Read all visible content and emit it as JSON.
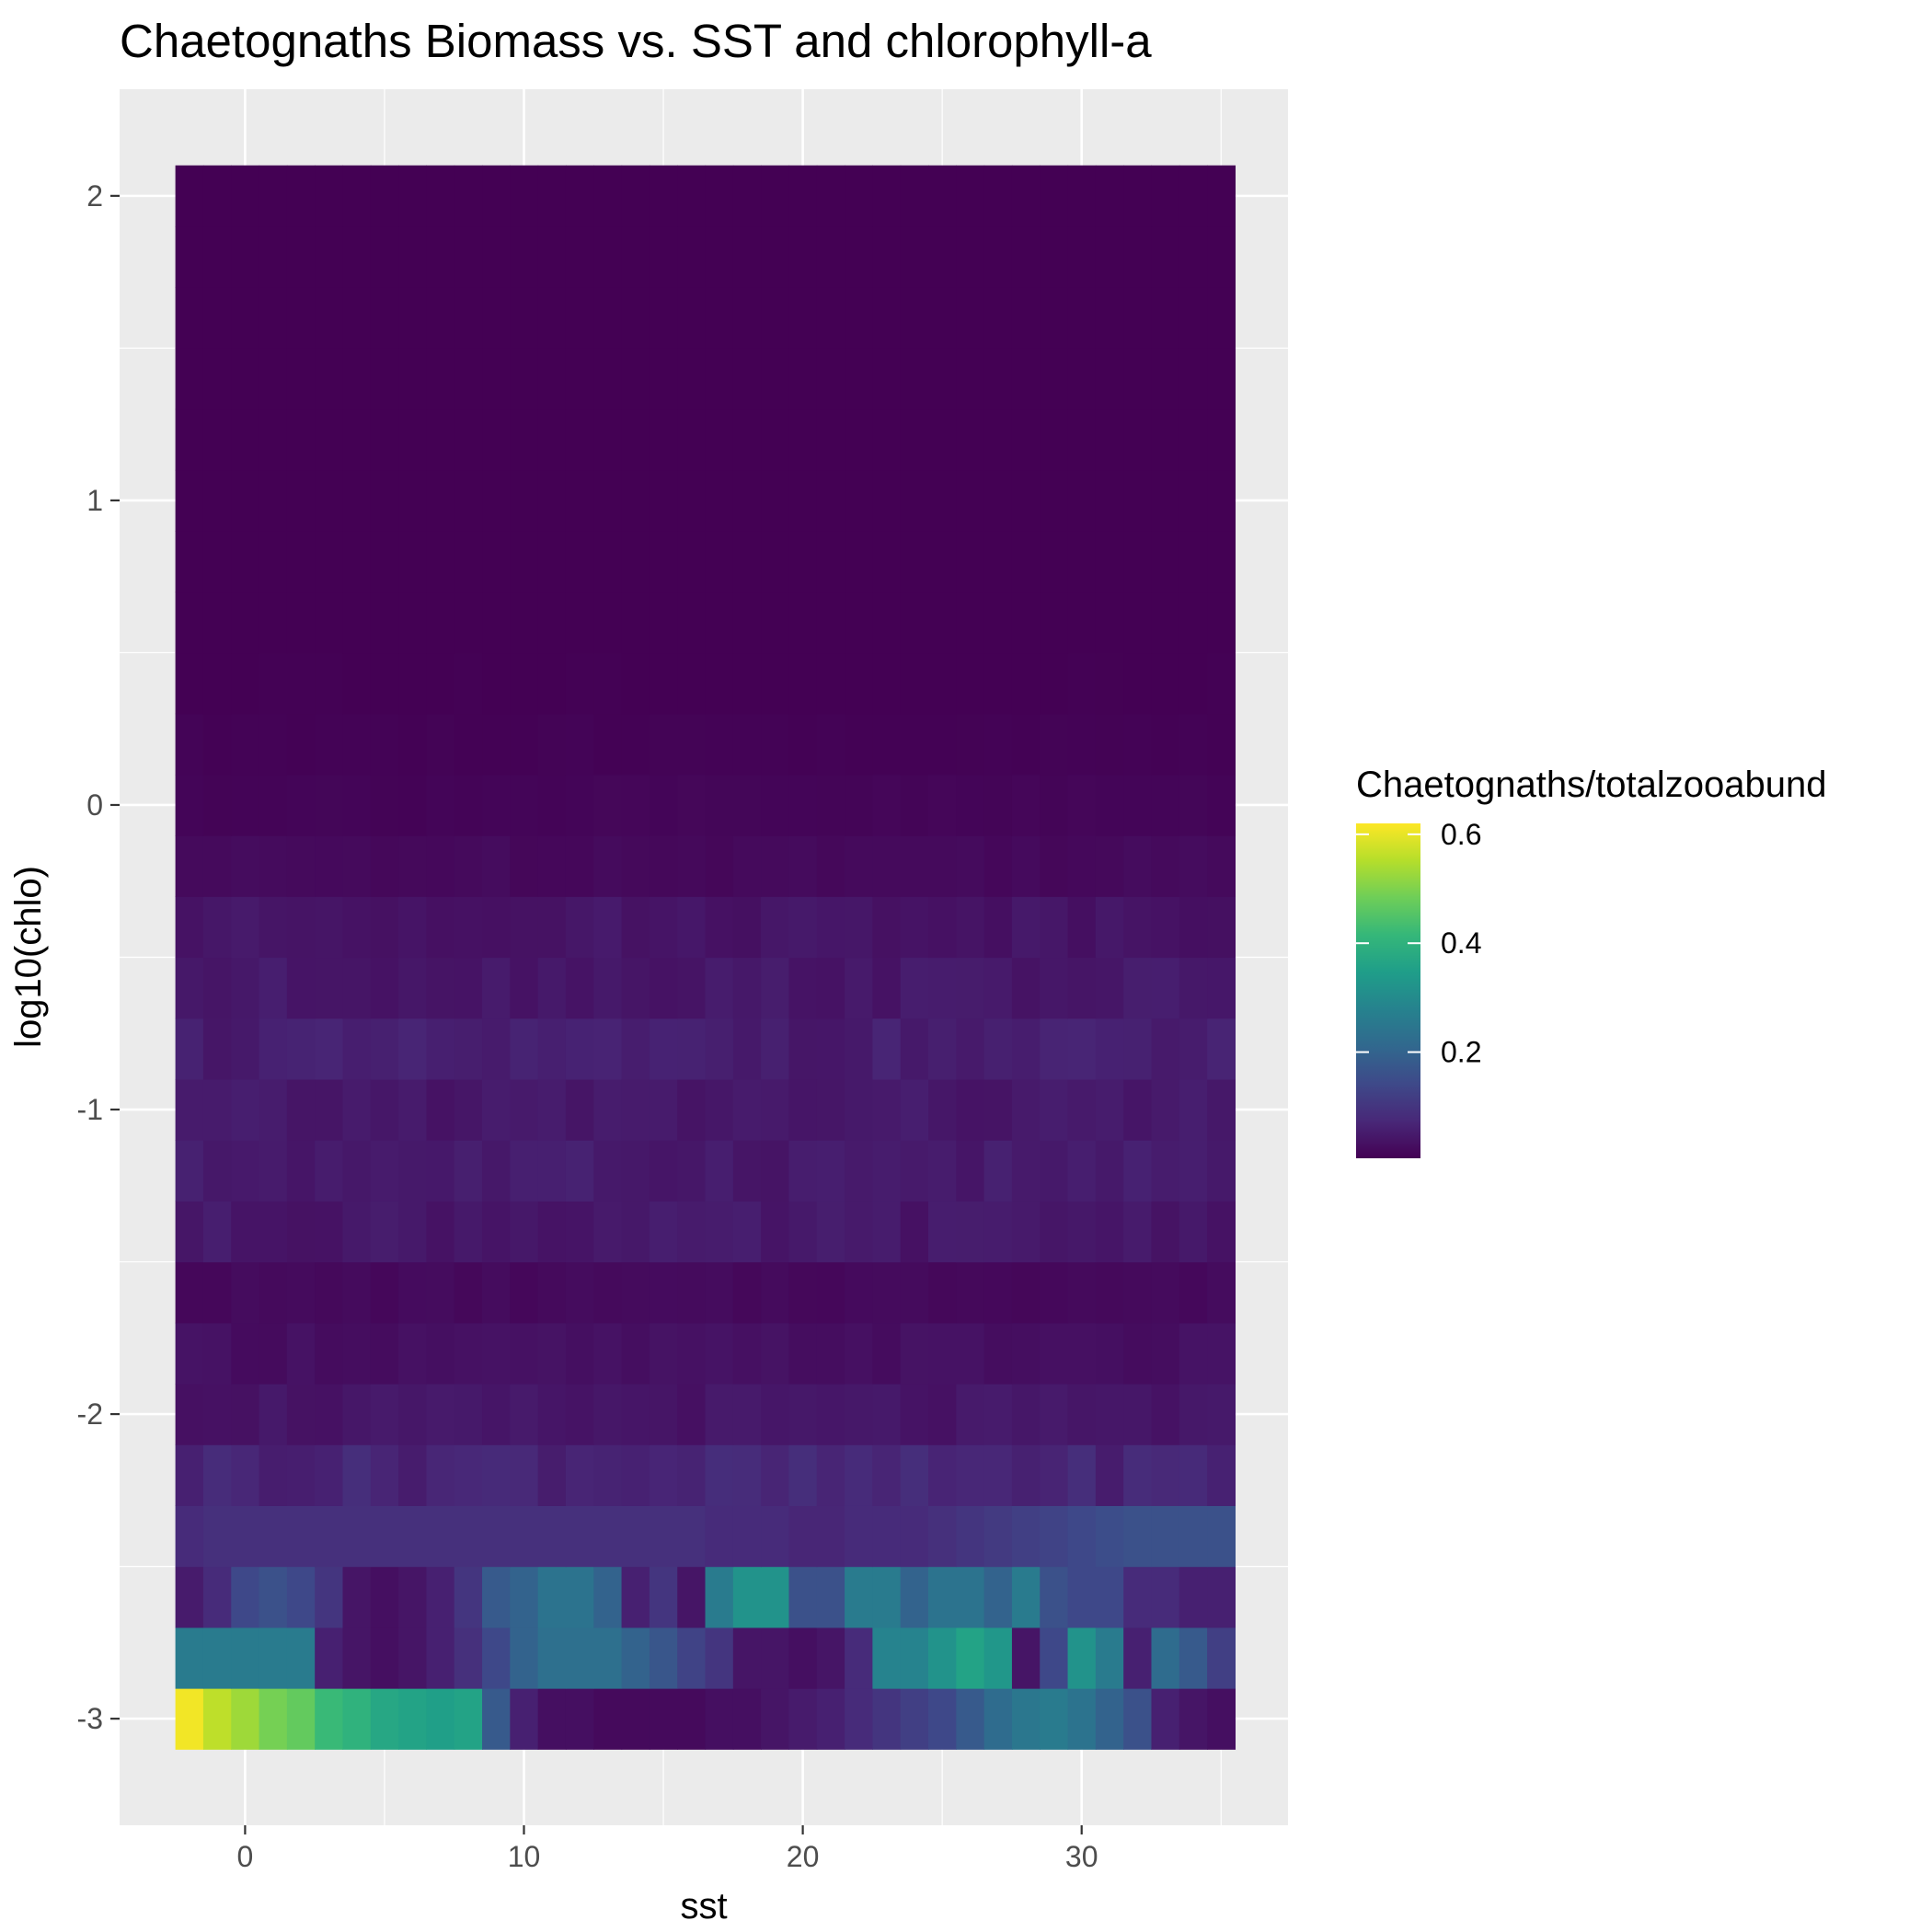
{
  "chart_data": {
    "type": "heatmap",
    "title": "Chaetognaths Biomass vs. SST and chlorophyll-a",
    "xlabel": "sst",
    "ylabel": "log10(chlo)",
    "xlim": [
      -4.5,
      37.4
    ],
    "ylim": [
      -3.35,
      2.35
    ],
    "x_ticks": [
      0,
      10,
      20,
      30
    ],
    "y_ticks": [
      -3,
      -2,
      -1,
      0,
      1,
      2
    ],
    "x_tick_labels": [
      "0",
      "10",
      "20",
      "30"
    ],
    "y_tick_labels": [
      "-3",
      "-2",
      "-1",
      "0",
      "1",
      "2"
    ],
    "grid": true,
    "x_bin_edges": [
      -2.5,
      -1.5,
      -0.5,
      0.5,
      1.5,
      2.5,
      3.5,
      4.5,
      5.5,
      6.5,
      7.5,
      8.5,
      9.5,
      10.5,
      11.5,
      12.5,
      13.5,
      14.5,
      15.5,
      16.5,
      17.5,
      18.5,
      19.5,
      20.5,
      21.5,
      22.5,
      23.5,
      24.5,
      25.5,
      26.5,
      27.5,
      28.5,
      29.5,
      30.5,
      31.5,
      32.5,
      33.5,
      34.5,
      35.5
    ],
    "y_bin_edges": [
      -3.1,
      -2.9,
      -2.7,
      -2.5,
      -2.3,
      -2.1,
      -1.9,
      -1.7,
      -1.5,
      -1.3,
      -1.1,
      -0.9,
      -0.7,
      -0.5,
      -0.3,
      -0.1,
      0.1,
      0.3,
      0.5,
      0.7,
      0.9,
      1.1,
      1.3,
      1.5,
      1.7,
      1.9,
      2.1
    ],
    "row_base": [
      0.28,
      0.18,
      0.14,
      0.09,
      0.07,
      0.04,
      0.03,
      0.02,
      0.045,
      0.05,
      0.045,
      0.055,
      0.045,
      0.04,
      0.02,
      0.012,
      0.008,
      0.005,
      0.004,
      0.004,
      0.003,
      0.004,
      0.003,
      0.003,
      0.003,
      0.004
    ],
    "z_rows": [
      {
        "row": 0,
        "values": [
          0.61,
          0.56,
          0.53,
          0.49,
          0.47,
          0.42,
          0.4,
          0.37,
          0.36,
          0.35,
          0.36,
          0.18,
          0.06,
          0.03,
          0.03,
          0.02,
          0.02,
          0.02,
          0.02,
          0.03,
          0.03,
          0.04,
          0.05,
          0.06,
          0.08,
          0.1,
          0.12,
          0.14,
          0.18,
          0.22,
          0.25,
          0.26,
          0.24,
          0.2,
          0.16,
          0.06,
          0.04,
          0.03,
          0.06
        ]
      },
      {
        "row": 1,
        "values": [
          0.26,
          0.26,
          0.26,
          0.26,
          0.26,
          0.06,
          0.04,
          0.03,
          0.04,
          0.06,
          0.09,
          0.14,
          0.2,
          0.23,
          0.23,
          0.23,
          0.2,
          0.17,
          0.13,
          0.1,
          0.04,
          0.04,
          0.03,
          0.04,
          0.08,
          0.28,
          0.28,
          0.32,
          0.36,
          0.33,
          0.04,
          0.14,
          0.32,
          0.26,
          0.06,
          0.22,
          0.18,
          0.12,
          0.16
        ]
      },
      {
        "row": 2,
        "values": [
          0.05,
          0.08,
          0.14,
          0.16,
          0.14,
          0.1,
          0.04,
          0.03,
          0.04,
          0.06,
          0.1,
          0.18,
          0.2,
          0.24,
          0.24,
          0.2,
          0.06,
          0.1,
          0.04,
          0.26,
          0.32,
          0.32,
          0.16,
          0.16,
          0.26,
          0.26,
          0.2,
          0.24,
          0.24,
          0.2,
          0.26,
          0.16,
          0.14,
          0.14,
          0.08,
          0.08,
          0.06,
          0.06,
          0.06
        ]
      },
      {
        "row": 3,
        "values": [
          0.08,
          0.09,
          0.09,
          0.09,
          0.09,
          0.09,
          0.09,
          0.09,
          0.09,
          0.09,
          0.09,
          0.09,
          0.09,
          0.09,
          0.09,
          0.09,
          0.09,
          0.09,
          0.09,
          0.08,
          0.08,
          0.08,
          0.07,
          0.07,
          0.08,
          0.08,
          0.08,
          0.09,
          0.1,
          0.11,
          0.12,
          0.13,
          0.14,
          0.15,
          0.16,
          0.16,
          0.16,
          0.16,
          0.16
        ]
      }
    ],
    "colorbar": {
      "title": "Chaetognaths/totalzooabund",
      "range": [
        0.005,
        0.62
      ],
      "ticks": [
        0.2,
        0.4,
        0.6
      ],
      "tick_labels": [
        "0.2",
        "0.4",
        "0.6"
      ],
      "colors": [
        "#440154",
        "#482878",
        "#3e4989",
        "#31688e",
        "#26828e",
        "#1f9e89",
        "#35b779",
        "#6ece58",
        "#b5de2b",
        "#fde725"
      ]
    },
    "legend_position": "right"
  }
}
